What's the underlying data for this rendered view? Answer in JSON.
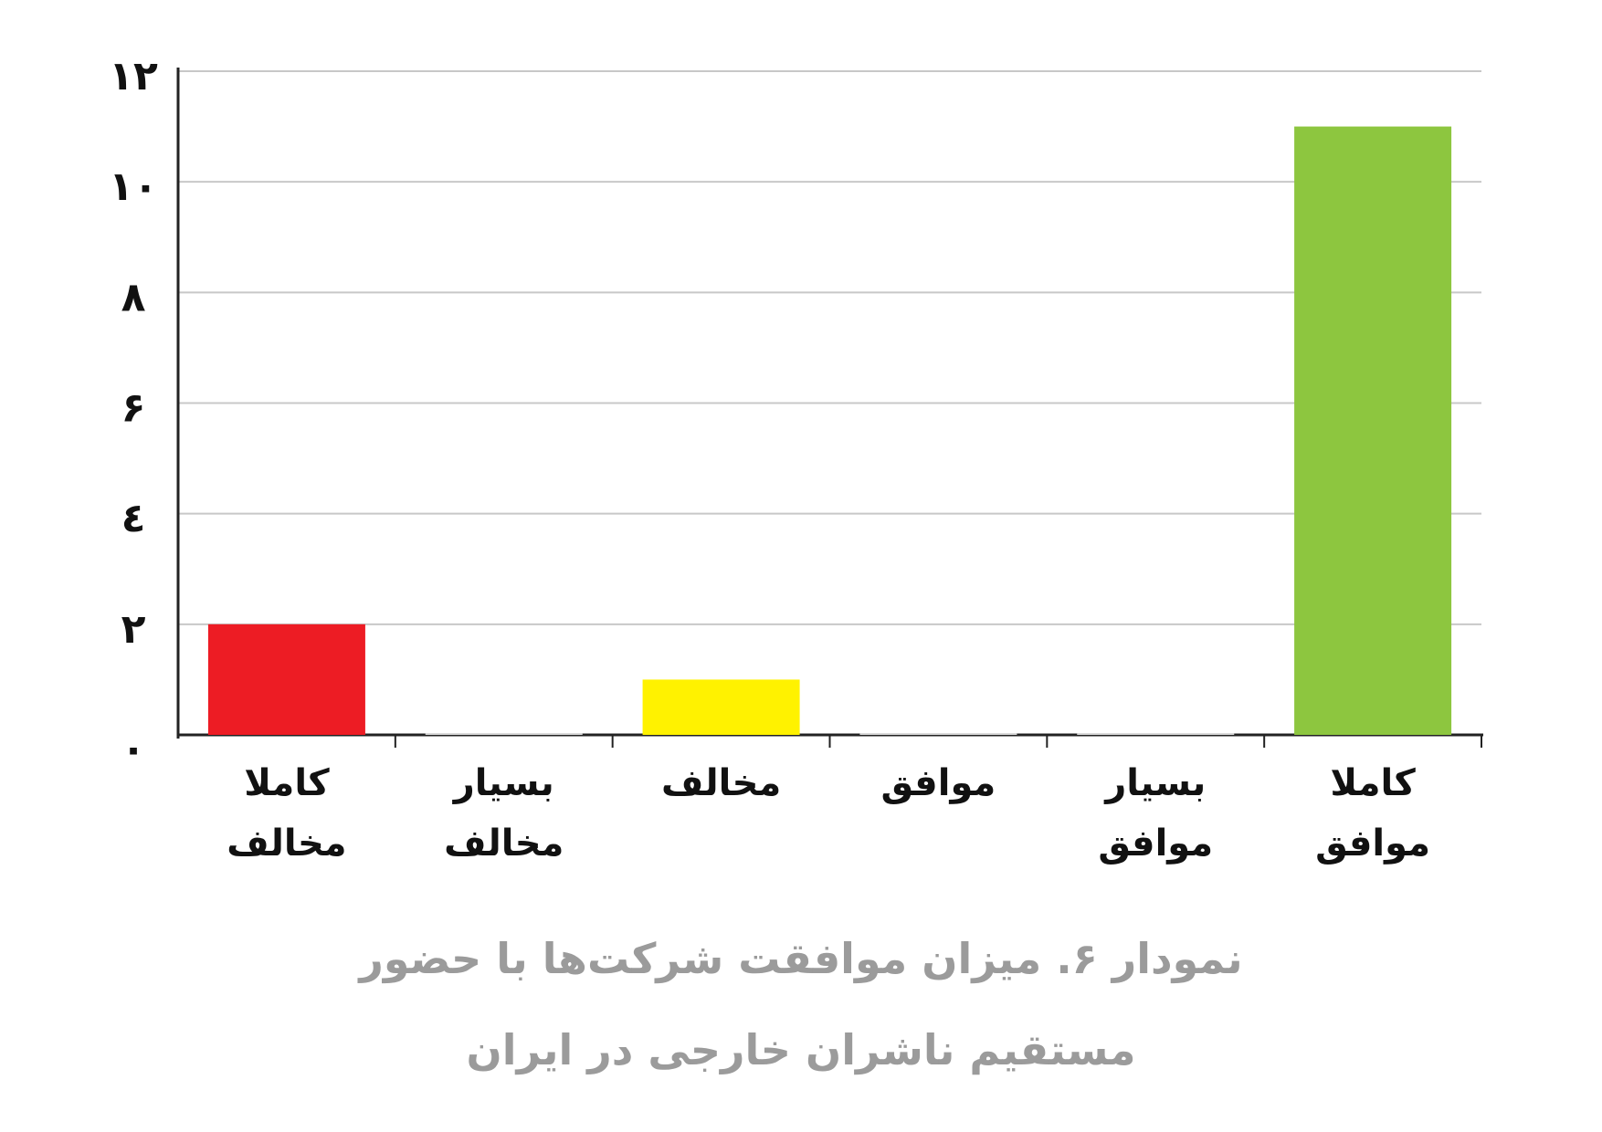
{
  "chart_data": {
    "type": "bar",
    "title": "نمودار ۶. میزان موافقت شرکت‌ها با حضور مستقیم ناشران خارجی در ایران",
    "categories": [
      "کاملا مخالف",
      "بسیار مخالف",
      "مخالف",
      "موافق",
      "بسیار موافق",
      "کاملا موافق"
    ],
    "values": [
      2,
      0,
      1,
      0,
      0,
      11
    ],
    "colors": [
      "#ed1c24",
      "#d9d9d9",
      "#fff200",
      "#d9d9d9",
      "#d9d9d9",
      "#8dc63f"
    ],
    "ylim": [
      0,
      12
    ],
    "yticks": [
      {
        "value": 0,
        "label": "۰"
      },
      {
        "value": 2,
        "label": "۲"
      },
      {
        "value": 4,
        "label": "٤"
      },
      {
        "value": 6,
        "label": "۶"
      },
      {
        "value": 8,
        "label": "۸"
      },
      {
        "value": 10,
        "label": "۱۰"
      },
      {
        "value": 12,
        "label": "۱۲"
      }
    ],
    "grid": true
  }
}
